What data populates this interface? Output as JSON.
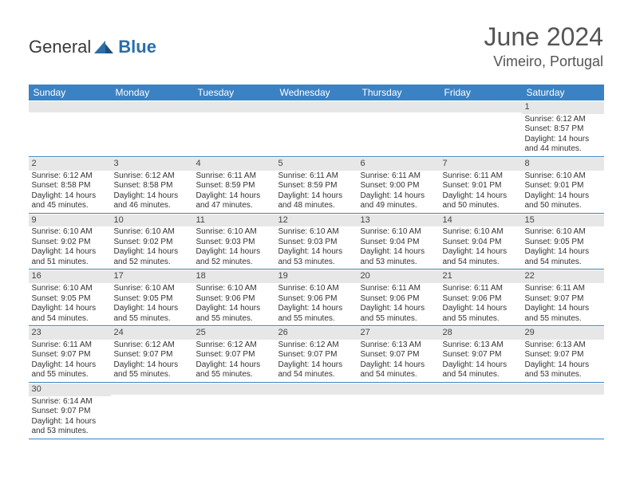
{
  "brand": {
    "name1": "General",
    "name2": "Blue"
  },
  "title": "June 2024",
  "location": "Vimeiro, Portugal",
  "colors": {
    "header_bg": "#3a82c4",
    "daynum_bg": "#e7e7e7",
    "border": "#3a82c4",
    "brand_blue": "#2b6ea9",
    "text": "#333333"
  },
  "dayHeaders": [
    "Sunday",
    "Monday",
    "Tuesday",
    "Wednesday",
    "Thursday",
    "Friday",
    "Saturday"
  ],
  "weeks": [
    [
      {
        "n": "",
        "lines": []
      },
      {
        "n": "",
        "lines": []
      },
      {
        "n": "",
        "lines": []
      },
      {
        "n": "",
        "lines": []
      },
      {
        "n": "",
        "lines": []
      },
      {
        "n": "",
        "lines": []
      },
      {
        "n": "1",
        "lines": [
          "Sunrise: 6:12 AM",
          "Sunset: 8:57 PM",
          "Daylight: 14 hours",
          "and 44 minutes."
        ]
      }
    ],
    [
      {
        "n": "2",
        "lines": [
          "Sunrise: 6:12 AM",
          "Sunset: 8:58 PM",
          "Daylight: 14 hours",
          "and 45 minutes."
        ]
      },
      {
        "n": "3",
        "lines": [
          "Sunrise: 6:12 AM",
          "Sunset: 8:58 PM",
          "Daylight: 14 hours",
          "and 46 minutes."
        ]
      },
      {
        "n": "4",
        "lines": [
          "Sunrise: 6:11 AM",
          "Sunset: 8:59 PM",
          "Daylight: 14 hours",
          "and 47 minutes."
        ]
      },
      {
        "n": "5",
        "lines": [
          "Sunrise: 6:11 AM",
          "Sunset: 8:59 PM",
          "Daylight: 14 hours",
          "and 48 minutes."
        ]
      },
      {
        "n": "6",
        "lines": [
          "Sunrise: 6:11 AM",
          "Sunset: 9:00 PM",
          "Daylight: 14 hours",
          "and 49 minutes."
        ]
      },
      {
        "n": "7",
        "lines": [
          "Sunrise: 6:11 AM",
          "Sunset: 9:01 PM",
          "Daylight: 14 hours",
          "and 50 minutes."
        ]
      },
      {
        "n": "8",
        "lines": [
          "Sunrise: 6:10 AM",
          "Sunset: 9:01 PM",
          "Daylight: 14 hours",
          "and 50 minutes."
        ]
      }
    ],
    [
      {
        "n": "9",
        "lines": [
          "Sunrise: 6:10 AM",
          "Sunset: 9:02 PM",
          "Daylight: 14 hours",
          "and 51 minutes."
        ]
      },
      {
        "n": "10",
        "lines": [
          "Sunrise: 6:10 AM",
          "Sunset: 9:02 PM",
          "Daylight: 14 hours",
          "and 52 minutes."
        ]
      },
      {
        "n": "11",
        "lines": [
          "Sunrise: 6:10 AM",
          "Sunset: 9:03 PM",
          "Daylight: 14 hours",
          "and 52 minutes."
        ]
      },
      {
        "n": "12",
        "lines": [
          "Sunrise: 6:10 AM",
          "Sunset: 9:03 PM",
          "Daylight: 14 hours",
          "and 53 minutes."
        ]
      },
      {
        "n": "13",
        "lines": [
          "Sunrise: 6:10 AM",
          "Sunset: 9:04 PM",
          "Daylight: 14 hours",
          "and 53 minutes."
        ]
      },
      {
        "n": "14",
        "lines": [
          "Sunrise: 6:10 AM",
          "Sunset: 9:04 PM",
          "Daylight: 14 hours",
          "and 54 minutes."
        ]
      },
      {
        "n": "15",
        "lines": [
          "Sunrise: 6:10 AM",
          "Sunset: 9:05 PM",
          "Daylight: 14 hours",
          "and 54 minutes."
        ]
      }
    ],
    [
      {
        "n": "16",
        "lines": [
          "Sunrise: 6:10 AM",
          "Sunset: 9:05 PM",
          "Daylight: 14 hours",
          "and 54 minutes."
        ]
      },
      {
        "n": "17",
        "lines": [
          "Sunrise: 6:10 AM",
          "Sunset: 9:05 PM",
          "Daylight: 14 hours",
          "and 55 minutes."
        ]
      },
      {
        "n": "18",
        "lines": [
          "Sunrise: 6:10 AM",
          "Sunset: 9:06 PM",
          "Daylight: 14 hours",
          "and 55 minutes."
        ]
      },
      {
        "n": "19",
        "lines": [
          "Sunrise: 6:10 AM",
          "Sunset: 9:06 PM",
          "Daylight: 14 hours",
          "and 55 minutes."
        ]
      },
      {
        "n": "20",
        "lines": [
          "Sunrise: 6:11 AM",
          "Sunset: 9:06 PM",
          "Daylight: 14 hours",
          "and 55 minutes."
        ]
      },
      {
        "n": "21",
        "lines": [
          "Sunrise: 6:11 AM",
          "Sunset: 9:06 PM",
          "Daylight: 14 hours",
          "and 55 minutes."
        ]
      },
      {
        "n": "22",
        "lines": [
          "Sunrise: 6:11 AM",
          "Sunset: 9:07 PM",
          "Daylight: 14 hours",
          "and 55 minutes."
        ]
      }
    ],
    [
      {
        "n": "23",
        "lines": [
          "Sunrise: 6:11 AM",
          "Sunset: 9:07 PM",
          "Daylight: 14 hours",
          "and 55 minutes."
        ]
      },
      {
        "n": "24",
        "lines": [
          "Sunrise: 6:12 AM",
          "Sunset: 9:07 PM",
          "Daylight: 14 hours",
          "and 55 minutes."
        ]
      },
      {
        "n": "25",
        "lines": [
          "Sunrise: 6:12 AM",
          "Sunset: 9:07 PM",
          "Daylight: 14 hours",
          "and 55 minutes."
        ]
      },
      {
        "n": "26",
        "lines": [
          "Sunrise: 6:12 AM",
          "Sunset: 9:07 PM",
          "Daylight: 14 hours",
          "and 54 minutes."
        ]
      },
      {
        "n": "27",
        "lines": [
          "Sunrise: 6:13 AM",
          "Sunset: 9:07 PM",
          "Daylight: 14 hours",
          "and 54 minutes."
        ]
      },
      {
        "n": "28",
        "lines": [
          "Sunrise: 6:13 AM",
          "Sunset: 9:07 PM",
          "Daylight: 14 hours",
          "and 54 minutes."
        ]
      },
      {
        "n": "29",
        "lines": [
          "Sunrise: 6:13 AM",
          "Sunset: 9:07 PM",
          "Daylight: 14 hours",
          "and 53 minutes."
        ]
      }
    ],
    [
      {
        "n": "30",
        "lines": [
          "Sunrise: 6:14 AM",
          "Sunset: 9:07 PM",
          "Daylight: 14 hours",
          "and 53 minutes."
        ]
      },
      {
        "n": "",
        "lines": []
      },
      {
        "n": "",
        "lines": []
      },
      {
        "n": "",
        "lines": []
      },
      {
        "n": "",
        "lines": []
      },
      {
        "n": "",
        "lines": []
      },
      {
        "n": "",
        "lines": []
      }
    ]
  ]
}
